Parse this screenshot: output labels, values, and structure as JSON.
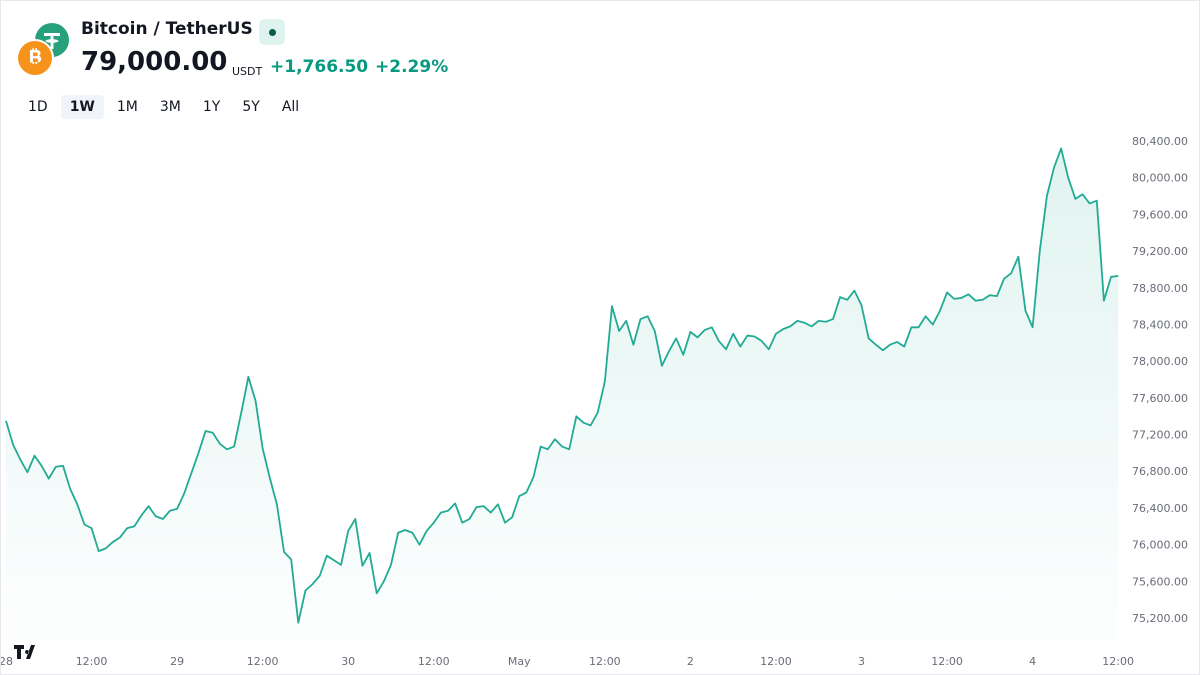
{
  "header": {
    "symbol": "Bitcoin / TetherUS",
    "price": "79,000.00",
    "currency": "USDT",
    "change": "+1,766.50",
    "change_percent": "+2.29%"
  },
  "ranges": {
    "items": [
      "1D",
      "1W",
      "1M",
      "3M",
      "1Y",
      "5Y",
      "All"
    ],
    "active": "1W"
  },
  "chart_data": {
    "type": "line",
    "color": "#22ab94",
    "area": true,
    "x": [
      0,
      1,
      2,
      3,
      4,
      5,
      6,
      7,
      8,
      9,
      10,
      11,
      12,
      13,
      14,
      15,
      16,
      17,
      18,
      19,
      20,
      21,
      22,
      23,
      24,
      25,
      26,
      27,
      28,
      29,
      30,
      31,
      32,
      33,
      34,
      35,
      36,
      37,
      38,
      39,
      40,
      41,
      42,
      43,
      44,
      45,
      46,
      47,
      48,
      49,
      50,
      51,
      52,
      53,
      54,
      55,
      56,
      57,
      58,
      59,
      60,
      61,
      62,
      63,
      64,
      65,
      66,
      67,
      68,
      69,
      70,
      71,
      72,
      73,
      74,
      75,
      76,
      77,
      78,
      79,
      80,
      81,
      82,
      83,
      84,
      85,
      86,
      87,
      88,
      89,
      90,
      91,
      92,
      93,
      94,
      95,
      96,
      97,
      98,
      99,
      100,
      101,
      102,
      103,
      104,
      105,
      106,
      107,
      108,
      109,
      110,
      111,
      112,
      113,
      114,
      115,
      116,
      117,
      118,
      119,
      120,
      121,
      122,
      123,
      124,
      125,
      126,
      127,
      128,
      129,
      130,
      131,
      132,
      133,
      134,
      135,
      136,
      137,
      138,
      139,
      140,
      141,
      142,
      143,
      144,
      145,
      146,
      147,
      148,
      149,
      150,
      151,
      152,
      153,
      154,
      155,
      156
    ],
    "values": [
      77360,
      77100,
      76940,
      76800,
      76980,
      76870,
      76730,
      76860,
      76870,
      76620,
      76450,
      76230,
      76190,
      75940,
      75970,
      76040,
      76090,
      76190,
      76210,
      76330,
      76430,
      76320,
      76290,
      76380,
      76400,
      76570,
      76790,
      77010,
      77250,
      77230,
      77110,
      77050,
      77080,
      77450,
      77840,
      77580,
      77060,
      76740,
      76450,
      75930,
      75850,
      75160,
      75510,
      75580,
      75670,
      75890,
      75840,
      75790,
      76160,
      76290,
      75780,
      75920,
      75480,
      75610,
      75790,
      76140,
      76170,
      76140,
      76010,
      76160,
      76250,
      76360,
      76380,
      76460,
      76250,
      76290,
      76420,
      76430,
      76360,
      76450,
      76250,
      76310,
      76540,
      76580,
      76750,
      77080,
      77050,
      77160,
      77080,
      77050,
      77410,
      77340,
      77310,
      77450,
      77790,
      78610,
      78340,
      78450,
      78190,
      78470,
      78500,
      78340,
      77960,
      78120,
      78260,
      78080,
      78330,
      78270,
      78350,
      78380,
      78230,
      78140,
      78310,
      78170,
      78290,
      78280,
      78230,
      78140,
      78310,
      78360,
      78390,
      78450,
      78430,
      78390,
      78450,
      78440,
      78470,
      78710,
      78680,
      78780,
      78620,
      78260,
      78190,
      78130,
      78190,
      78220,
      78170,
      78380,
      78380,
      78500,
      78410,
      78560,
      78760,
      78690,
      78700,
      78740,
      78670,
      78680,
      78730,
      78720,
      78910,
      78970,
      79150,
      78560,
      78380,
      79210,
      79810,
      80120,
      80330,
      80010,
      79780,
      79830,
      79730,
      79760,
      78670,
      78930,
      78940
    ],
    "xlim": [
      -0.7,
      157.1
    ],
    "xticks": [
      {
        "value": 0,
        "label": "28"
      },
      {
        "value": 12,
        "label": "12:00"
      },
      {
        "value": 24,
        "label": "29"
      },
      {
        "value": 36,
        "label": "12:00"
      },
      {
        "value": 48,
        "label": "30"
      },
      {
        "value": 60,
        "label": "12:00"
      },
      {
        "value": 72,
        "label": "May"
      },
      {
        "value": 84,
        "label": "12:00"
      },
      {
        "value": 96,
        "label": "2"
      },
      {
        "value": 108,
        "label": "12:00"
      },
      {
        "value": 120,
        "label": "3"
      },
      {
        "value": 132,
        "label": "12:00"
      },
      {
        "value": 144,
        "label": "4"
      },
      {
        "value": 156,
        "label": "12:00"
      }
    ],
    "ylim": [
      74960,
      80520
    ],
    "yticks": [
      {
        "value": 75200,
        "label": "75,200.00"
      },
      {
        "value": 75600,
        "label": "75,600.00"
      },
      {
        "value": 76000,
        "label": "76,000.00"
      },
      {
        "value": 76400,
        "label": "76,400.00"
      },
      {
        "value": 76800,
        "label": "76,800.00"
      },
      {
        "value": 77200,
        "label": "77,200.00"
      },
      {
        "value": 77600,
        "label": "77,600.00"
      },
      {
        "value": 78000,
        "label": "78,000.00"
      },
      {
        "value": 78400,
        "label": "78,400.00"
      },
      {
        "value": 78800,
        "label": "78,800.00"
      },
      {
        "value": 79200,
        "label": "79,200.00"
      },
      {
        "value": 79600,
        "label": "79,600.00"
      },
      {
        "value": 80000,
        "label": "80,000.00"
      },
      {
        "value": 80400,
        "label": "80,400.00"
      }
    ]
  }
}
